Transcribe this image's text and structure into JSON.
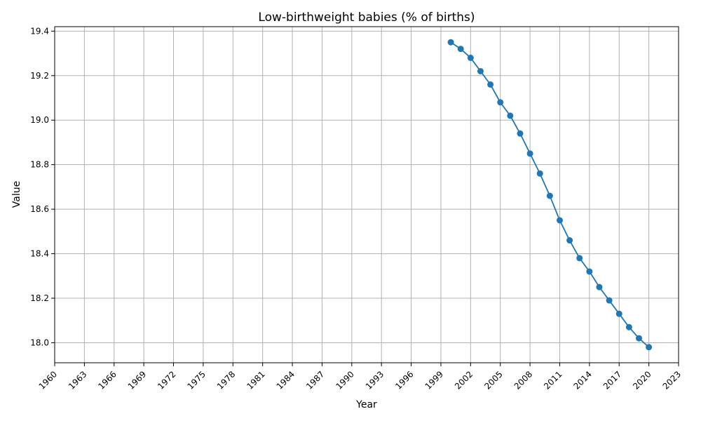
{
  "chart_data": {
    "type": "line",
    "title": "Low-birthweight babies (% of births)",
    "xlabel": "Year",
    "ylabel": "Value",
    "xlim": [
      1960,
      2023
    ],
    "ylim": [
      17.91,
      19.42
    ],
    "xticks": [
      1960,
      1963,
      1966,
      1969,
      1972,
      1975,
      1978,
      1981,
      1984,
      1987,
      1990,
      1993,
      1996,
      1999,
      2002,
      2005,
      2008,
      2011,
      2014,
      2017,
      2020,
      2023
    ],
    "yticks": [
      "18.0",
      "18.2",
      "18.4",
      "18.6",
      "18.8",
      "19.0",
      "19.2",
      "19.4"
    ],
    "grid": true,
    "line_color": "#1f77b4",
    "series": [
      {
        "x": [
          2000,
          2001,
          2002,
          2003,
          2004,
          2005,
          2006,
          2007,
          2008,
          2009,
          2010,
          2011,
          2012,
          2013,
          2014,
          2015,
          2016,
          2017,
          2018,
          2019,
          2020
        ],
        "values": [
          19.35,
          19.32,
          19.28,
          19.22,
          19.16,
          19.08,
          19.02,
          18.94,
          18.85,
          18.76,
          18.66,
          18.55,
          18.46,
          18.38,
          18.32,
          18.25,
          18.19,
          18.13,
          18.07,
          18.02,
          17.98
        ]
      }
    ]
  }
}
